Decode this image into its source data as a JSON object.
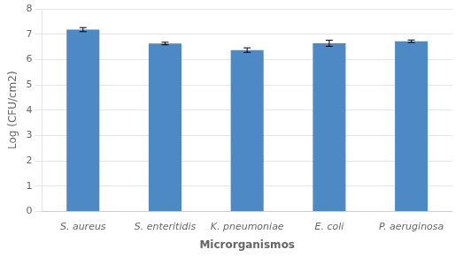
{
  "chart_data": {
    "type": "bar",
    "categories": [
      "S. aureus",
      "S. enteritidis",
      "K. pneumoniae",
      "E. coli",
      "P. aeruginosa"
    ],
    "values": [
      7.18,
      6.63,
      6.37,
      6.64,
      6.72
    ],
    "errors": [
      0.08,
      0.05,
      0.09,
      0.12,
      0.05
    ],
    "color": "#4d89c4",
    "xlabel": "Microrganismos",
    "ylabel": "Log (CFU/cm2)",
    "ylim": [
      0,
      8
    ],
    "yticks": [
      0,
      1,
      2,
      3,
      4,
      5,
      6,
      7,
      8
    ],
    "grid": true
  }
}
